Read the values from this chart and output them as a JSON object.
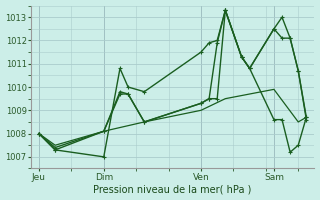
{
  "title": "Pression niveau de la mer( hPa )",
  "bg_color": "#cceee8",
  "grid_color": "#aacccc",
  "line_color": "#1a5e20",
  "ylim": [
    1006.5,
    1013.5
  ],
  "yticks": [
    1007,
    1008,
    1009,
    1010,
    1011,
    1012,
    1013
  ],
  "day_labels": [
    "Jeu",
    "Dim",
    "Ven",
    "Sam"
  ],
  "day_positions": [
    0,
    8,
    20,
    29
  ],
  "xlim": [
    -1,
    34
  ],
  "line1_x": [
    0,
    2,
    8,
    10,
    11,
    13,
    20,
    21,
    22,
    23,
    25,
    26,
    29,
    30,
    31,
    32,
    33
  ],
  "line1_y": [
    1008.0,
    1007.3,
    1007.0,
    1010.8,
    1010.0,
    1009.8,
    1011.5,
    1011.9,
    1012.0,
    1013.3,
    1011.3,
    1010.8,
    1012.5,
    1013.0,
    1012.1,
    1010.7,
    1008.7
  ],
  "line2_x": [
    0,
    2,
    8,
    10,
    11,
    13,
    20,
    21,
    22,
    23,
    25,
    26,
    29,
    30,
    31,
    32,
    33
  ],
  "line2_y": [
    1008.0,
    1007.3,
    1008.1,
    1009.8,
    1009.7,
    1008.5,
    1009.3,
    1009.5,
    1011.9,
    1013.3,
    1011.3,
    1010.8,
    1012.5,
    1012.1,
    1012.1,
    1010.7,
    1008.6
  ],
  "line3_x": [
    0,
    2,
    8,
    13,
    20,
    23,
    26,
    29,
    32,
    33
  ],
  "line3_y": [
    1008.0,
    1007.5,
    1008.1,
    1008.5,
    1009.0,
    1009.5,
    1009.7,
    1009.9,
    1008.5,
    1008.7
  ],
  "line4_x": [
    0,
    2,
    8,
    10,
    11,
    13,
    20,
    21,
    22,
    23,
    25,
    26,
    29,
    30,
    31,
    32,
    33
  ],
  "line4_y": [
    1008.0,
    1007.4,
    1008.1,
    1009.7,
    1009.7,
    1008.5,
    1009.3,
    1009.5,
    1009.5,
    1013.3,
    1011.3,
    1010.8,
    1008.6,
    1008.6,
    1007.2,
    1007.5,
    1008.7
  ]
}
